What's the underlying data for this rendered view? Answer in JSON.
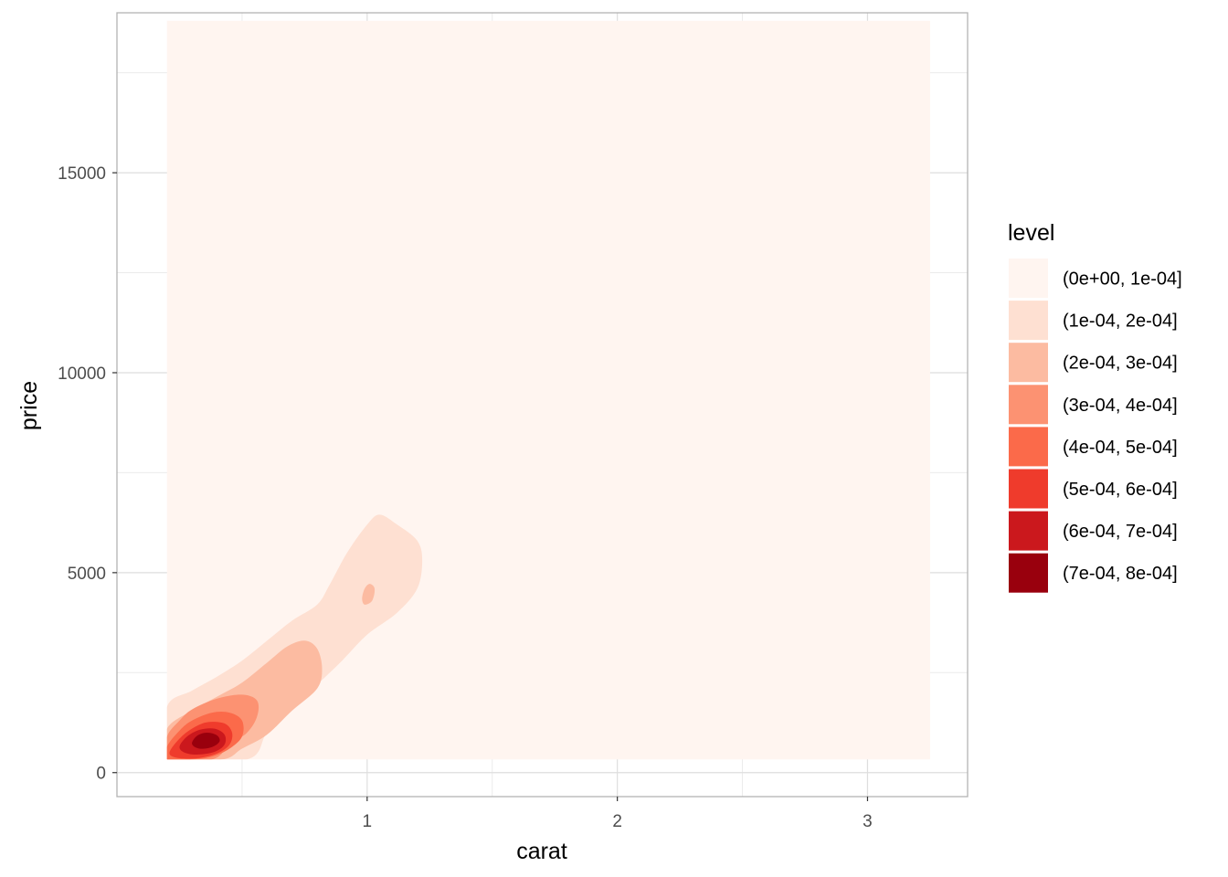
{
  "chart_data": {
    "type": "density-contour",
    "title": "",
    "xlabel": "carat",
    "ylabel": "price",
    "xlim": [
      0.0,
      3.4
    ],
    "ylim": [
      -600,
      19000
    ],
    "x_ticks": [
      1,
      2,
      3
    ],
    "x_tick_labels": [
      "1",
      "2",
      "3"
    ],
    "x_minor": [
      0.5,
      1.5,
      2.5
    ],
    "y_ticks": [
      0,
      5000,
      10000,
      15000
    ],
    "y_tick_labels": [
      "0",
      "5000",
      "10000",
      "15000"
    ],
    "y_minor": [
      2500,
      7500,
      12500,
      17500
    ],
    "grid": true,
    "data_extent": {
      "x": [
        0.2,
        3.25
      ],
      "y": [
        330,
        18800
      ]
    },
    "legend": {
      "title": "level",
      "position": "right",
      "entries": [
        {
          "label": "(0e+00, 1e-04]",
          "color": "#fff5f0"
        },
        {
          "label": "(1e-04, 2e-04]",
          "color": "#fee0d2"
        },
        {
          "label": "(2e-04, 3e-04]",
          "color": "#fcbba1"
        },
        {
          "label": "(3e-04, 4e-04]",
          "color": "#fc9272"
        },
        {
          "label": "(4e-04, 5e-04]",
          "color": "#fb6a4a"
        },
        {
          "label": "(5e-04, 6e-04]",
          "color": "#ef3b2c"
        },
        {
          "label": "(6e-04, 7e-04]",
          "color": "#cb181d"
        },
        {
          "label": "(7e-04, 8e-04]",
          "color": "#99000d"
        }
      ]
    },
    "regions": [
      {
        "level": 1,
        "points": [
          [
            0.2,
            1650
          ],
          [
            0.3,
            2050
          ],
          [
            0.4,
            2400
          ],
          [
            0.5,
            2800
          ],
          [
            0.6,
            3300
          ],
          [
            0.7,
            3800
          ],
          [
            0.8,
            4200
          ],
          [
            0.85,
            4700
          ],
          [
            0.92,
            5500
          ],
          [
            1.0,
            6200
          ],
          [
            1.05,
            6450
          ],
          [
            1.12,
            6200
          ],
          [
            1.2,
            5800
          ],
          [
            1.22,
            5300
          ],
          [
            1.2,
            4600
          ],
          [
            1.12,
            4000
          ],
          [
            1.0,
            3450
          ],
          [
            0.9,
            2800
          ],
          [
            0.8,
            2200
          ],
          [
            0.7,
            1600
          ],
          [
            0.6,
            1000
          ],
          [
            0.52,
            330
          ],
          [
            0.2,
            330
          ]
        ]
      },
      {
        "level": 2,
        "points": [
          [
            0.2,
            1100
          ],
          [
            0.3,
            1550
          ],
          [
            0.4,
            1900
          ],
          [
            0.5,
            2250
          ],
          [
            0.6,
            2750
          ],
          [
            0.68,
            3150
          ],
          [
            0.75,
            3300
          ],
          [
            0.8,
            3100
          ],
          [
            0.82,
            2600
          ],
          [
            0.8,
            2100
          ],
          [
            0.7,
            1550
          ],
          [
            0.6,
            950
          ],
          [
            0.5,
            600
          ],
          [
            0.42,
            330
          ],
          [
            0.2,
            330
          ]
        ]
      },
      {
        "level": 2,
        "points": [
          [
            0.99,
            4600
          ],
          [
            1.01,
            4720
          ],
          [
            1.03,
            4600
          ],
          [
            1.02,
            4300
          ],
          [
            0.99,
            4200
          ],
          [
            0.98,
            4350
          ]
        ]
      },
      {
        "level": 3,
        "points": [
          [
            0.2,
            900
          ],
          [
            0.25,
            1300
          ],
          [
            0.3,
            1580
          ],
          [
            0.4,
            1850
          ],
          [
            0.5,
            1950
          ],
          [
            0.56,
            1800
          ],
          [
            0.56,
            1400
          ],
          [
            0.52,
            1000
          ],
          [
            0.45,
            700
          ],
          [
            0.38,
            330
          ],
          [
            0.2,
            330
          ]
        ]
      },
      {
        "level": 4,
        "points": [
          [
            0.2,
            650
          ],
          [
            0.25,
            1050
          ],
          [
            0.3,
            1300
          ],
          [
            0.38,
            1500
          ],
          [
            0.45,
            1500
          ],
          [
            0.5,
            1300
          ],
          [
            0.5,
            900
          ],
          [
            0.45,
            600
          ],
          [
            0.38,
            400
          ],
          [
            0.3,
            330
          ],
          [
            0.2,
            330
          ]
        ]
      },
      {
        "level": 5,
        "points": [
          [
            0.21,
            500
          ],
          [
            0.25,
            850
          ],
          [
            0.3,
            1100
          ],
          [
            0.36,
            1260
          ],
          [
            0.43,
            1230
          ],
          [
            0.46,
            1000
          ],
          [
            0.45,
            700
          ],
          [
            0.4,
            480
          ],
          [
            0.32,
            360
          ],
          [
            0.24,
            370
          ]
        ]
      },
      {
        "level": 6,
        "points": [
          [
            0.25,
            650
          ],
          [
            0.28,
            900
          ],
          [
            0.33,
            1070
          ],
          [
            0.39,
            1100
          ],
          [
            0.43,
            950
          ],
          [
            0.43,
            700
          ],
          [
            0.39,
            520
          ],
          [
            0.32,
            450
          ],
          [
            0.27,
            500
          ]
        ]
      },
      {
        "level": 7,
        "points": [
          [
            0.3,
            720
          ],
          [
            0.32,
            920
          ],
          [
            0.36,
            1000
          ],
          [
            0.4,
            930
          ],
          [
            0.41,
            780
          ],
          [
            0.38,
            640
          ],
          [
            0.33,
            600
          ]
        ]
      }
    ]
  }
}
